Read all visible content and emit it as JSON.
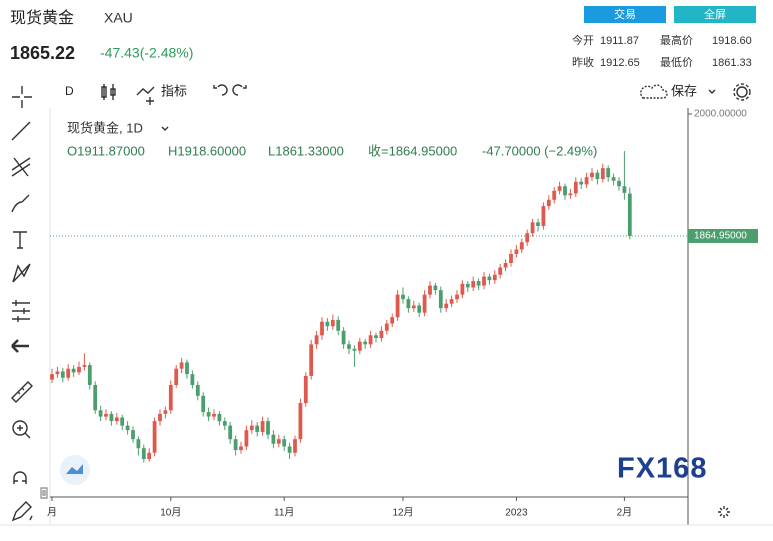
{
  "header": {
    "name": "现货黄金",
    "symbol": "XAU",
    "price": "1865.22",
    "change": "-47.43(-2.48%)",
    "buttons": [
      "交易",
      "全屏"
    ],
    "stats": [
      {
        "label": "今开",
        "value": "1911.87"
      },
      {
        "label": "最高价",
        "value": "1918.60"
      },
      {
        "label": "昨收",
        "value": "1912.65"
      },
      {
        "label": "最低价",
        "value": "1861.33"
      }
    ]
  },
  "toolbar": {
    "interval": "D",
    "indicators": "指标",
    "save": "保存"
  },
  "chart_data": {
    "type": "candlestick",
    "legend": "现货黄金, 1D",
    "ohlc_text": [
      "O1911.87000",
      "H1918.60000",
      "L1861.33000",
      "收=1864.95000",
      "-47.70000 (−2.49%)"
    ],
    "up_color": "#e0594e",
    "down_color": "#4d9e6e",
    "watermark": "FX168",
    "ylim": [
      1576,
      2006.6
    ],
    "yticks": [
      {
        "value": 2000,
        "label": "2000.00000"
      }
    ],
    "last_price": {
      "value": 1864.95,
      "label": "1864.95000"
    },
    "categories": [
      "月",
      null,
      null,
      null,
      null,
      null,
      null,
      null,
      null,
      null,
      null,
      null,
      null,
      null,
      null,
      null,
      null,
      null,
      null,
      null,
      null,
      null,
      "10月",
      null,
      null,
      null,
      null,
      null,
      null,
      null,
      null,
      null,
      null,
      null,
      null,
      null,
      null,
      null,
      null,
      null,
      null,
      null,
      null,
      "11月",
      null,
      null,
      null,
      null,
      null,
      null,
      null,
      null,
      null,
      null,
      null,
      null,
      null,
      null,
      null,
      null,
      null,
      null,
      null,
      null,
      null,
      "12月",
      null,
      null,
      null,
      null,
      null,
      null,
      null,
      null,
      null,
      null,
      null,
      null,
      null,
      null,
      null,
      null,
      null,
      null,
      null,
      null,
      "2023",
      null,
      null,
      null,
      null,
      null,
      null,
      null,
      null,
      null,
      null,
      null,
      null,
      null,
      null,
      null,
      null,
      null,
      null,
      null,
      "2月",
      null
    ],
    "candles": [
      [
        1706,
        1718,
        1702,
        1712
      ],
      [
        1712,
        1720,
        1708,
        1715
      ],
      [
        1715,
        1719,
        1703,
        1708
      ],
      [
        1708,
        1723,
        1705,
        1718
      ],
      [
        1718,
        1722,
        1709,
        1714
      ],
      [
        1714,
        1726,
        1711,
        1720
      ],
      [
        1720,
        1735,
        1716,
        1722
      ],
      [
        1722,
        1725,
        1695,
        1700
      ],
      [
        1700,
        1704,
        1668,
        1672
      ],
      [
        1672,
        1677,
        1660,
        1665
      ],
      [
        1665,
        1673,
        1661,
        1668
      ],
      [
        1668,
        1671,
        1655,
        1660
      ],
      [
        1660,
        1669,
        1656,
        1664
      ],
      [
        1664,
        1667,
        1650,
        1655
      ],
      [
        1655,
        1660,
        1645,
        1650
      ],
      [
        1650,
        1654,
        1636,
        1640
      ],
      [
        1640,
        1643,
        1622,
        1630
      ],
      [
        1630,
        1634,
        1614,
        1618
      ],
      [
        1618,
        1630,
        1615,
        1625
      ],
      [
        1625,
        1664,
        1621,
        1660
      ],
      [
        1660,
        1673,
        1655,
        1668
      ],
      [
        1668,
        1676,
        1663,
        1672
      ],
      [
        1672,
        1705,
        1668,
        1700
      ],
      [
        1700,
        1722,
        1697,
        1718
      ],
      [
        1718,
        1730,
        1713,
        1725
      ],
      [
        1725,
        1728,
        1707,
        1712
      ],
      [
        1712,
        1716,
        1696,
        1700
      ],
      [
        1700,
        1704,
        1683,
        1688
      ],
      [
        1688,
        1692,
        1665,
        1670
      ],
      [
        1670,
        1675,
        1660,
        1665
      ],
      [
        1665,
        1673,
        1661,
        1668
      ],
      [
        1668,
        1671,
        1655,
        1660
      ],
      [
        1660,
        1664,
        1650,
        1655
      ],
      [
        1655,
        1659,
        1635,
        1640
      ],
      [
        1640,
        1644,
        1622,
        1628
      ],
      [
        1628,
        1637,
        1624,
        1632
      ],
      [
        1632,
        1655,
        1628,
        1650
      ],
      [
        1650,
        1661,
        1646,
        1655
      ],
      [
        1655,
        1659,
        1643,
        1648
      ],
      [
        1648,
        1665,
        1644,
        1660
      ],
      [
        1660,
        1664,
        1640,
        1645
      ],
      [
        1645,
        1650,
        1630,
        1635
      ],
      [
        1635,
        1645,
        1631,
        1640
      ],
      [
        1640,
        1644,
        1627,
        1632
      ],
      [
        1632,
        1636,
        1618,
        1625
      ],
      [
        1625,
        1644,
        1621,
        1640
      ],
      [
        1640,
        1685,
        1636,
        1680
      ],
      [
        1680,
        1714,
        1676,
        1710
      ],
      [
        1710,
        1750,
        1706,
        1745
      ],
      [
        1745,
        1760,
        1740,
        1755
      ],
      [
        1755,
        1775,
        1750,
        1770
      ],
      [
        1770,
        1774,
        1760,
        1765
      ],
      [
        1765,
        1778,
        1761,
        1772
      ],
      [
        1772,
        1776,
        1755,
        1760
      ],
      [
        1760,
        1764,
        1740,
        1745
      ],
      [
        1745,
        1749,
        1734,
        1740
      ],
      [
        1740,
        1744,
        1720,
        1738
      ],
      [
        1738,
        1752,
        1734,
        1748
      ],
      [
        1748,
        1751,
        1740,
        1745
      ],
      [
        1745,
        1760,
        1741,
        1755
      ],
      [
        1755,
        1758,
        1747,
        1752
      ],
      [
        1752,
        1765,
        1748,
        1760
      ],
      [
        1760,
        1772,
        1756,
        1768
      ],
      [
        1768,
        1779,
        1764,
        1775
      ],
      [
        1775,
        1805,
        1771,
        1800
      ],
      [
        1800,
        1808,
        1790,
        1795
      ],
      [
        1795,
        1798,
        1780,
        1785
      ],
      [
        1785,
        1793,
        1781,
        1788
      ],
      [
        1788,
        1791,
        1775,
        1780
      ],
      [
        1780,
        1805,
        1776,
        1800
      ],
      [
        1800,
        1815,
        1796,
        1810
      ],
      [
        1810,
        1813,
        1800,
        1805
      ],
      [
        1805,
        1809,
        1780,
        1785
      ],
      [
        1785,
        1795,
        1781,
        1790
      ],
      [
        1790,
        1799,
        1786,
        1795
      ],
      [
        1795,
        1805,
        1791,
        1800
      ],
      [
        1800,
        1816,
        1796,
        1812
      ],
      [
        1812,
        1815,
        1803,
        1808
      ],
      [
        1808,
        1820,
        1804,
        1815
      ],
      [
        1815,
        1818,
        1805,
        1810
      ],
      [
        1810,
        1825,
        1806,
        1820
      ],
      [
        1820,
        1823,
        1811,
        1816
      ],
      [
        1816,
        1827,
        1812,
        1822
      ],
      [
        1822,
        1834,
        1818,
        1830
      ],
      [
        1830,
        1839,
        1826,
        1835
      ],
      [
        1835,
        1850,
        1831,
        1845
      ],
      [
        1845,
        1855,
        1841,
        1850
      ],
      [
        1850,
        1862,
        1846,
        1858
      ],
      [
        1858,
        1872,
        1854,
        1868
      ],
      [
        1868,
        1884,
        1864,
        1880
      ],
      [
        1880,
        1884,
        1870,
        1876
      ],
      [
        1876,
        1902,
        1872,
        1898
      ],
      [
        1898,
        1910,
        1894,
        1905
      ],
      [
        1905,
        1919,
        1901,
        1915
      ],
      [
        1915,
        1925,
        1911,
        1920
      ],
      [
        1920,
        1923,
        1905,
        1910
      ],
      [
        1910,
        1917,
        1906,
        1912
      ],
      [
        1912,
        1930,
        1908,
        1925
      ],
      [
        1925,
        1929,
        1917,
        1922
      ],
      [
        1922,
        1935,
        1918,
        1930
      ],
      [
        1930,
        1940,
        1926,
        1935
      ],
      [
        1935,
        1938,
        1922,
        1928
      ],
      [
        1928,
        1945,
        1924,
        1940
      ],
      [
        1940,
        1943,
        1925,
        1930
      ],
      [
        1930,
        1934,
        1921,
        1926
      ],
      [
        1926,
        1930,
        1915,
        1920
      ],
      [
        1920,
        1959,
        1905,
        1912.65
      ],
      [
        1911.87,
        1918.6,
        1861.33,
        1864.95
      ]
    ]
  }
}
